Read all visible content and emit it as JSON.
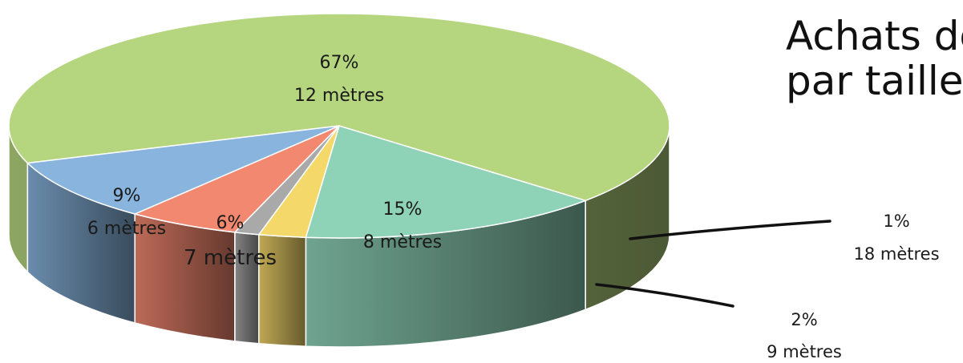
{
  "chart_data": {
    "type": "pie",
    "title_lines": [
      "Achats de yachts",
      "par taille"
    ],
    "slices": [
      {
        "pct": "67%",
        "label": "12 mètres",
        "value": 67,
        "color": "#b5d57e"
      },
      {
        "pct": "15%",
        "label": "8 mètres",
        "value": 15,
        "color": "#8ed2b8"
      },
      {
        "pct": "2%",
        "label": "9 mètres",
        "value": 2.3,
        "color": "#f5d86a"
      },
      {
        "pct": "1%",
        "label": "18 mètres",
        "value": 1.2,
        "color": "#a9a9a9"
      },
      {
        "pct": "6%",
        "label": "7 mètres",
        "value": 5.5,
        "color": "#f28870"
      },
      {
        "pct": "9%",
        "label": "6 mètres",
        "value": 9,
        "color": "#88b4de"
      }
    ]
  }
}
